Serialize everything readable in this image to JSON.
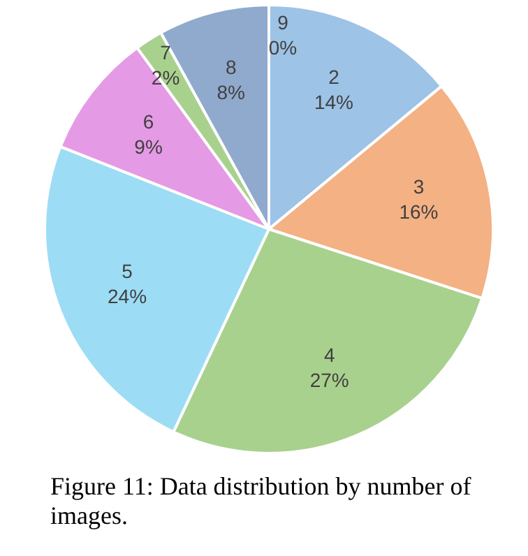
{
  "chart_data": {
    "type": "pie",
    "categories": [
      "2",
      "3",
      "4",
      "5",
      "6",
      "7",
      "8",
      "9"
    ],
    "values": [
      14,
      16,
      27,
      24,
      9,
      2,
      8,
      0
    ],
    "value_labels": [
      "14%",
      "16%",
      "27%",
      "24%",
      "9%",
      "2%",
      "8%",
      "0%"
    ],
    "colors": [
      "#9dc3e6",
      "#f4b183",
      "#a9d18e",
      "#9ddcf5",
      "#e59ae5",
      "#a9d18e",
      "#8faacc",
      "#a6a6a6"
    ],
    "legend": false,
    "annotations": [
      "Figure 11: Data distribution by number of images."
    ]
  }
}
